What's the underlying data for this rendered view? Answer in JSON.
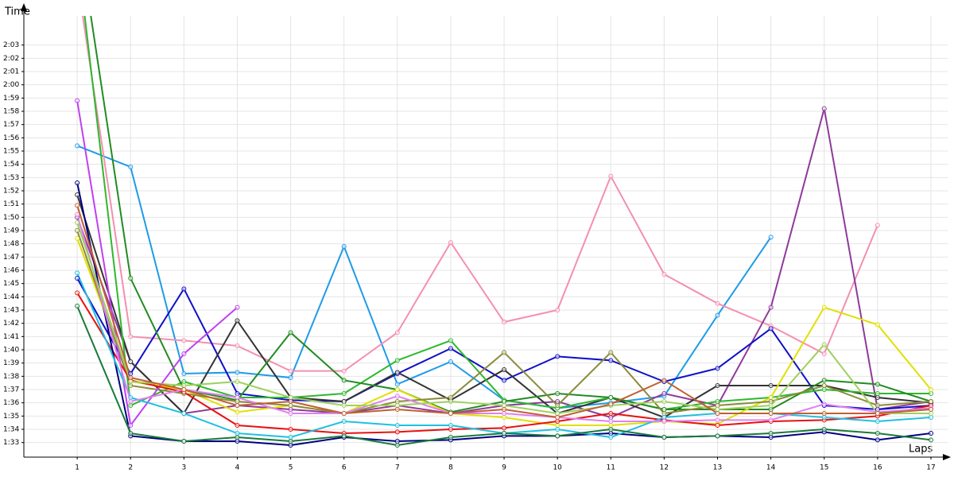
{
  "chart_data": {
    "type": "line",
    "y_label": "Time",
    "x_label": "Laps",
    "x": [
      1,
      2,
      3,
      4,
      5,
      6,
      7,
      8,
      9,
      10,
      11,
      12,
      13,
      14,
      15,
      16,
      17
    ],
    "xlim": [
      0,
      17
    ],
    "xticks": [
      1,
      2,
      3,
      4,
      5,
      6,
      7,
      8,
      9,
      10,
      11,
      12,
      13,
      14,
      15,
      16,
      17
    ],
    "ylim": [
      91.9,
      125.2
    ],
    "yticks": [
      {
        "value": 93,
        "label": "1:33"
      },
      {
        "value": 94,
        "label": "1:34"
      },
      {
        "value": 95,
        "label": "1:35"
      },
      {
        "value": 96,
        "label": "1:36"
      },
      {
        "value": 97,
        "label": "1:37"
      },
      {
        "value": 98,
        "label": "1:38"
      },
      {
        "value": 99,
        "label": "1:39"
      },
      {
        "value": 100,
        "label": "1:40"
      },
      {
        "value": 101,
        "label": "1:41"
      },
      {
        "value": 102,
        "label": "1:42"
      },
      {
        "value": 103,
        "label": "1:43"
      },
      {
        "value": 104,
        "label": "1:44"
      },
      {
        "value": 105,
        "label": "1:45"
      },
      {
        "value": 106,
        "label": "1:46"
      },
      {
        "value": 107,
        "label": "1:47"
      },
      {
        "value": 108,
        "label": "1:48"
      },
      {
        "value": 109,
        "label": "1:49"
      },
      {
        "value": 110,
        "label": "1:50"
      },
      {
        "value": 111,
        "label": "1:51"
      },
      {
        "value": 112,
        "label": "1:52"
      },
      {
        "value": 113,
        "label": "1:53"
      },
      {
        "value": 114,
        "label": "1:54"
      },
      {
        "value": 115,
        "label": "1:55"
      },
      {
        "value": 116,
        "label": "1:56"
      },
      {
        "value": 117,
        "label": "1:57"
      },
      {
        "value": 118,
        "label": "1:58"
      },
      {
        "value": 119,
        "label": "1:59"
      },
      {
        "value": 120,
        "label": "2:00"
      },
      {
        "value": 121,
        "label": "2:01"
      },
      {
        "value": 122,
        "label": "2:02"
      },
      {
        "value": 123,
        "label": "2:03"
      }
    ],
    "grid": true,
    "series": [
      {
        "color": "#1e9be8",
        "values": [
          115.4,
          113.8,
          98.2,
          98.3,
          97.9,
          107.8,
          97.4,
          99.1,
          96.2,
          95.6,
          96.0,
          96.5,
          102.6,
          108.5,
          null,
          null,
          null
        ]
      },
      {
        "color": "#f48fb1",
        "values": [
          128,
          101.0,
          100.7,
          100.3,
          98.4,
          98.4,
          101.3,
          108.1,
          102.1,
          103.0,
          113.1,
          105.7,
          103.5,
          101.8,
          99.7,
          109.4,
          null
        ]
      },
      {
        "color": "#8e3a9a",
        "values": [
          110,
          99.1,
          95.2,
          95.8,
          95.5,
          95.2,
          95.8,
          95.2,
          95.8,
          96.1,
          94.9,
          96.7,
          95.8,
          103.2,
          118.2,
          95.5,
          96.1
        ]
      },
      {
        "color": "#1010c8",
        "values": [
          105.4,
          98.2,
          104.6,
          96.7,
          96.2,
          96.1,
          98.2,
          100.1,
          97.7,
          99.5,
          99.2,
          97.6,
          98.6,
          101.6,
          95.8,
          95.5,
          95.8
        ]
      },
      {
        "color": "#333333",
        "values": [
          111.7,
          99.1,
          95.2,
          102.2,
          96.4,
          96.1,
          98.3,
          96.2,
          98.5,
          95.2,
          96.4,
          94.9,
          97.3,
          97.3,
          97.3,
          96.4,
          96.0
        ]
      },
      {
        "color": "#2eb82e",
        "values": [
          130,
          95.8,
          97.6,
          96.4,
          96.4,
          96.7,
          99.2,
          100.7,
          96.2,
          95.6,
          96.4,
          95.5,
          96.1,
          96.4,
          97.0,
          96.7,
          96.7
        ]
      },
      {
        "color": "#228b22",
        "values": [
          132,
          105.4,
          97.0,
          96.2,
          101.3,
          97.7,
          97.0,
          95.3,
          96.1,
          96.7,
          96.4,
          95.5,
          95.5,
          95.5,
          97.7,
          97.4,
          96.1
        ]
      },
      {
        "color": "#e0e000",
        "values": [
          108.4,
          97.6,
          97.0,
          95.3,
          95.8,
          95.2,
          97.0,
          95.2,
          94.9,
          94.3,
          94.3,
          94.6,
          94.4,
          96.4,
          103.2,
          101.9,
          97.0
        ]
      },
      {
        "color": "#8b8b3a",
        "values": [
          109.0,
          97.3,
          96.7,
          96.1,
          95.8,
          95.2,
          96.1,
          96.4,
          99.8,
          95.8,
          99.8,
          95.2,
          95.8,
          96.1,
          97.3,
          95.8,
          96.1
        ]
      },
      {
        "color": "#c040f0",
        "values": [
          118.8,
          94.3,
          99.7,
          103.2,
          null,
          null,
          null,
          null,
          null,
          null,
          null,
          null,
          null,
          null,
          null,
          null,
          null
        ]
      },
      {
        "color": "#e81010",
        "values": [
          104.3,
          97.7,
          96.8,
          94.3,
          94.0,
          93.7,
          93.8,
          94.0,
          94.1,
          94.6,
          95.2,
          94.7,
          94.3,
          94.6,
          94.7,
          95.0,
          95.8
        ]
      },
      {
        "color": "#000080",
        "values": [
          112.6,
          93.5,
          93.1,
          93.1,
          92.8,
          93.4,
          93.1,
          93.2,
          93.5,
          93.5,
          93.7,
          93.4,
          93.5,
          93.4,
          93.8,
          93.2,
          93.7
        ]
      },
      {
        "color": "#20c0e0",
        "values": [
          105.8,
          96.4,
          95.2,
          93.7,
          93.4,
          94.6,
          94.3,
          94.3,
          93.7,
          94.0,
          93.4,
          94.9,
          95.2,
          95.2,
          94.9,
          94.6,
          94.9
        ]
      },
      {
        "color": "#1a7a3a",
        "values": [
          103.3,
          93.7,
          93.1,
          93.4,
          93.1,
          93.5,
          92.8,
          93.4,
          93.7,
          93.5,
          94.0,
          93.4,
          93.5,
          93.7,
          94.0,
          93.7,
          93.2
        ]
      },
      {
        "color": "#e080f0",
        "values": [
          110.2,
          96.1,
          97.0,
          96.4,
          95.2,
          95.2,
          96.5,
          95.2,
          95.2,
          94.9,
          94.6,
          94.6,
          94.7,
          94.7,
          95.9,
          95.3,
          95.6
        ]
      },
      {
        "color": "#a0d060",
        "values": [
          109.6,
          97.6,
          97.3,
          97.6,
          96.4,
          95.8,
          95.8,
          96.1,
          95.8,
          95.2,
          95.8,
          96.1,
          95.5,
          95.8,
          100.4,
          95.2,
          95.2
        ]
      },
      {
        "color": "#c06030",
        "values": [
          110.9,
          97.9,
          97.0,
          95.8,
          96.1,
          95.2,
          95.5,
          95.2,
          95.5,
          94.9,
          95.9,
          97.7,
          95.2,
          95.2,
          95.2,
          95.2,
          95.5
        ]
      }
    ]
  }
}
